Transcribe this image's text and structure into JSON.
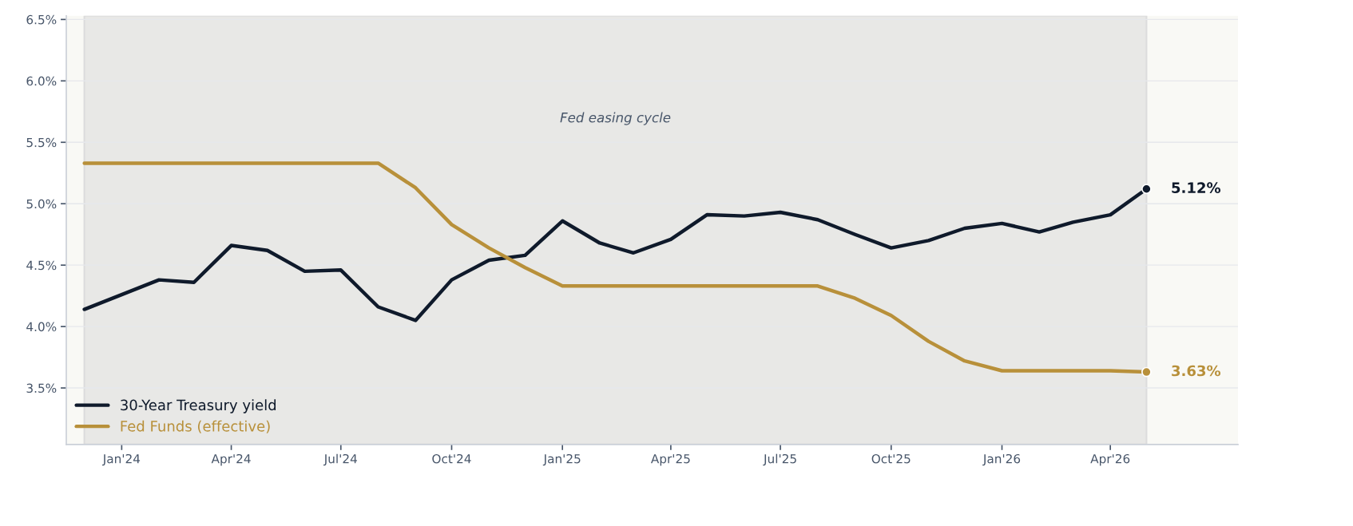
{
  "chart_data": {
    "type": "line",
    "x": [
      "2023-12",
      "2024-01",
      "2024-02",
      "2024-03",
      "2024-04",
      "2024-05",
      "2024-06",
      "2024-07",
      "2024-08",
      "2024-09",
      "2024-10",
      "2024-11",
      "2024-12",
      "2025-01",
      "2025-02",
      "2025-03",
      "2025-04",
      "2025-05",
      "2025-06",
      "2025-07",
      "2025-08",
      "2025-09",
      "2025-10",
      "2025-11",
      "2025-12",
      "2026-01",
      "2026-02",
      "2026-03",
      "2026-04",
      "2026-05"
    ],
    "series": [
      {
        "name": "30-Year Treasury yield",
        "color": "#0f1a2b",
        "values": [
          4.14,
          4.26,
          4.38,
          4.36,
          4.66,
          4.62,
          4.45,
          4.46,
          4.16,
          4.05,
          4.38,
          4.54,
          4.58,
          4.86,
          4.68,
          4.6,
          4.71,
          4.91,
          4.9,
          4.93,
          4.87,
          4.75,
          4.64,
          4.7,
          4.8,
          4.84,
          4.77,
          4.85,
          4.91,
          5.12
        ],
        "value_labels": [
          null,
          null,
          null,
          null,
          null,
          null,
          null,
          null,
          null,
          null,
          null,
          null,
          null,
          null,
          null,
          null,
          null,
          null,
          null,
          null,
          null,
          null,
          null,
          null,
          null,
          null,
          null,
          null,
          null,
          "5.12%"
        ]
      },
      {
        "name": "Fed Funds (effective)",
        "color": "#b8903a",
        "values": [
          5.33,
          5.33,
          5.33,
          5.33,
          5.33,
          5.33,
          5.33,
          5.33,
          5.33,
          5.13,
          4.83,
          4.64,
          4.48,
          4.33,
          4.33,
          4.33,
          4.33,
          4.33,
          4.33,
          4.33,
          4.33,
          4.23,
          4.09,
          3.88,
          3.72,
          3.64,
          3.64,
          3.64,
          3.64,
          3.63
        ],
        "value_labels": [
          null,
          null,
          null,
          null,
          null,
          null,
          null,
          null,
          null,
          null,
          null,
          null,
          null,
          null,
          null,
          null,
          null,
          null,
          null,
          null,
          null,
          null,
          null,
          null,
          null,
          null,
          null,
          null,
          null,
          "3.63%"
        ]
      }
    ],
    "xlim": [
      "2023-11-16",
      "2026-07-16"
    ],
    "xticks": [
      {
        "value": "2024-01",
        "label": "Jan'24"
      },
      {
        "value": "2024-04",
        "label": "Apr'24"
      },
      {
        "value": "2024-07",
        "label": "Jul'24"
      },
      {
        "value": "2024-10",
        "label": "Oct'24"
      },
      {
        "value": "2025-01",
        "label": "Jan'25"
      },
      {
        "value": "2025-04",
        "label": "Apr'25"
      },
      {
        "value": "2025-07",
        "label": "Jul'25"
      },
      {
        "value": "2025-10",
        "label": "Oct'25"
      },
      {
        "value": "2026-01",
        "label": "Jan'26"
      },
      {
        "value": "2026-04",
        "label": "Apr'26"
      }
    ],
    "ylim": [
      3.04,
      6.53
    ],
    "yticks": [
      {
        "value": 3.5,
        "label": "3.5%"
      },
      {
        "value": 4.0,
        "label": "4.0%"
      },
      {
        "value": 4.5,
        "label": "4.5%"
      },
      {
        "value": 5.0,
        "label": "5.0%"
      },
      {
        "value": 5.5,
        "label": "5.5%"
      },
      {
        "value": 6.0,
        "label": "6.0%"
      },
      {
        "value": 6.5,
        "label": "6.5%"
      }
    ],
    "bands": [
      {
        "axis": "x",
        "from": "2023-12",
        "to": "2026-05",
        "label": "Fed easing cycle",
        "color": "#e8e8e6"
      }
    ],
    "grid": "y",
    "legend": "bottom left",
    "marker": "none",
    "line_style": "solid"
  }
}
